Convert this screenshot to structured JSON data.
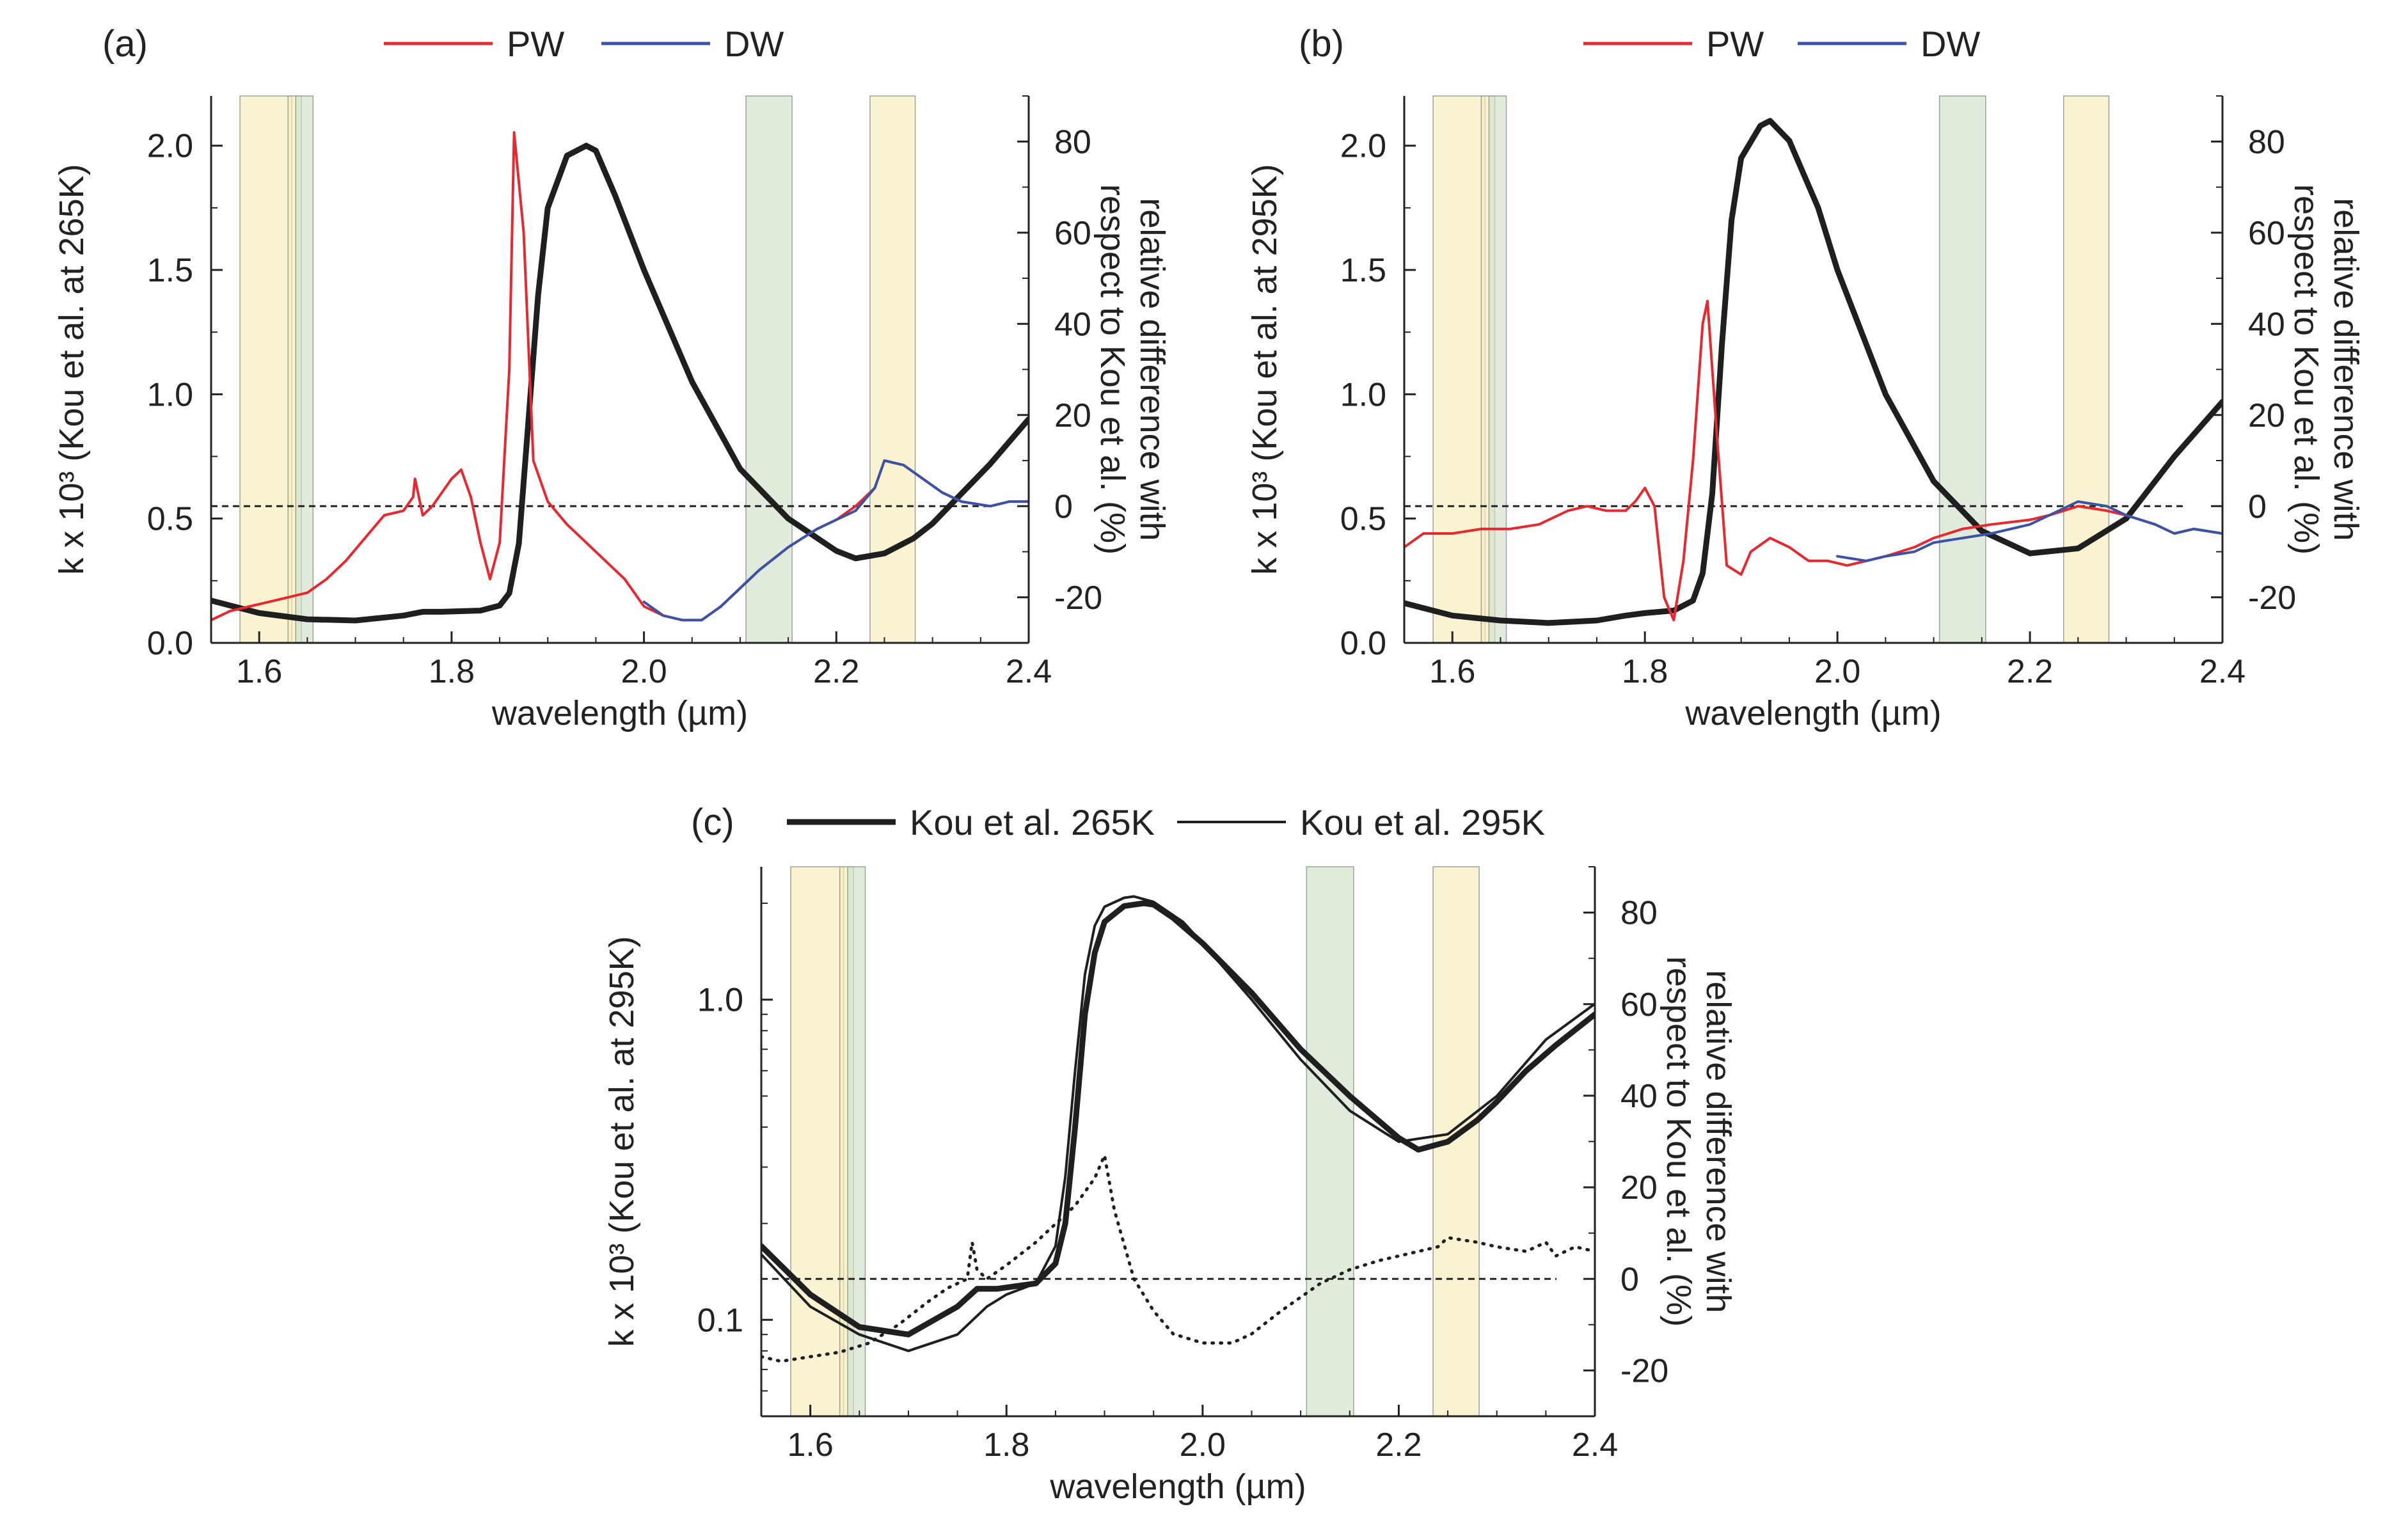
{
  "colors": {
    "pw": "#e8282e",
    "dw": "#3a53a6",
    "kou": "#1f1f1f",
    "band_yellow": "#f7edb8",
    "band_green": "#cfe0c8"
  },
  "shaded_bands_um": [
    {
      "range": [
        1.58,
        1.634
      ],
      "color": "yellow"
    },
    {
      "range": [
        1.63,
        1.644
      ],
      "color": "yellow"
    },
    {
      "range": [
        1.638,
        1.656
      ],
      "color": "green"
    },
    {
      "range": [
        2.106,
        2.154
      ],
      "color": "green"
    },
    {
      "range": [
        2.235,
        2.282
      ],
      "color": "yellow"
    }
  ],
  "chart_data": [
    {
      "id": "a",
      "panel_label": "(a)",
      "type": "line",
      "xlabel": "wavelength (µm)",
      "ylabel": "k x 10³ (Kou et al. at 265K)",
      "y2label": [
        "relative difference with",
        "respect to Kou et al. (%)"
      ],
      "xlim": [
        1.55,
        2.4
      ],
      "ylim": [
        0,
        2.2
      ],
      "y2lim": [
        -30,
        90
      ],
      "xticks": [
        "1.6",
        "1.8",
        "2.0",
        "2.2",
        "2.4"
      ],
      "yticks": [
        "0.0",
        "0.5",
        "1.0",
        "1.5",
        "2.0"
      ],
      "y2ticks": [
        "-20",
        "0",
        "20",
        "40",
        "60",
        "80"
      ],
      "legend": [
        {
          "label": "PW",
          "color": "#e8282e"
        },
        {
          "label": "DW",
          "color": "#3a53a6"
        }
      ],
      "zero_line_y2": 0,
      "series": [
        {
          "name": "Kou et al. 265K",
          "axis": "left",
          "width": 9,
          "color": "#1f1f1f",
          "x": [
            1.55,
            1.6,
            1.65,
            1.7,
            1.75,
            1.77,
            1.79,
            1.83,
            1.85,
            1.86,
            1.87,
            1.88,
            1.89,
            1.9,
            1.92,
            1.94,
            1.95,
            1.97,
            2.0,
            2.05,
            2.1,
            2.15,
            2.2,
            2.22,
            2.25,
            2.28,
            2.3,
            2.33,
            2.36,
            2.4
          ],
          "y": [
            0.17,
            0.12,
            0.095,
            0.09,
            0.11,
            0.125,
            0.125,
            0.13,
            0.15,
            0.2,
            0.4,
            0.9,
            1.4,
            1.75,
            1.96,
            2.0,
            1.98,
            1.8,
            1.5,
            1.05,
            0.7,
            0.5,
            0.37,
            0.34,
            0.36,
            0.42,
            0.48,
            0.6,
            0.72,
            0.9
          ]
        },
        {
          "name": "PW",
          "axis": "right",
          "width": 4,
          "color": "#e8282e",
          "x": [
            1.55,
            1.57,
            1.59,
            1.61,
            1.63,
            1.65,
            1.67,
            1.69,
            1.71,
            1.73,
            1.75,
            1.76,
            1.762,
            1.77,
            1.78,
            1.8,
            1.81,
            1.82,
            1.83,
            1.84,
            1.85,
            1.86,
            1.865,
            1.875,
            1.885,
            1.9,
            1.92,
            1.94,
            1.96,
            1.98,
            2.0,
            2.02,
            2.04,
            2.06,
            2.08,
            2.1,
            2.12,
            2.15,
            2.18,
            2.2,
            2.22,
            2.24,
            2.25,
            2.27,
            2.29,
            2.31,
            2.33,
            2.36,
            2.38,
            2.4
          ],
          "y": [
            -25,
            -23,
            -22,
            -21,
            -20,
            -19,
            -16,
            -12,
            -7,
            -2,
            -1,
            2,
            6,
            -2,
            0,
            6,
            8,
            2,
            -8,
            -16,
            -8,
            30,
            82,
            60,
            10,
            1,
            -4,
            -8,
            -12,
            -16,
            -22,
            -24,
            -25,
            -25,
            -22,
            -18,
            -14,
            -9,
            -5,
            -3,
            0,
            4,
            10,
            9,
            6,
            3,
            1,
            0,
            1,
            1
          ]
        },
        {
          "name": "DW",
          "axis": "right",
          "width": 4,
          "color": "#3a53a6",
          "x": [
            2.0,
            2.02,
            2.04,
            2.06,
            2.08,
            2.1,
            2.12,
            2.15,
            2.18,
            2.2,
            2.22,
            2.24,
            2.25,
            2.27,
            2.29,
            2.31,
            2.33,
            2.36,
            2.38,
            2.4
          ],
          "y": [
            -21,
            -24,
            -25,
            -25,
            -22,
            -18,
            -14,
            -9,
            -5,
            -3,
            -1,
            4,
            10,
            9,
            6,
            3,
            1,
            0,
            1,
            1
          ]
        }
      ]
    },
    {
      "id": "b",
      "panel_label": "(b)",
      "type": "line",
      "xlabel": "wavelength (µm)",
      "ylabel": "k x 10³ (Kou et al. at 295K)",
      "y2label": [
        "relative difference with",
        "respect to Kou et al. (%)"
      ],
      "xlim": [
        1.55,
        2.4
      ],
      "ylim": [
        0,
        2.2
      ],
      "y2lim": [
        -30,
        90
      ],
      "xticks": [
        "1.6",
        "1.8",
        "2.0",
        "2.2",
        "2.4"
      ],
      "yticks": [
        "0.0",
        "0.5",
        "1.0",
        "1.5",
        "2.0"
      ],
      "y2ticks": [
        "-20",
        "0",
        "20",
        "40",
        "60",
        "80"
      ],
      "legend": [
        {
          "label": "PW",
          "color": "#e8282e"
        },
        {
          "label": "DW",
          "color": "#3a53a6"
        }
      ],
      "zero_line_y2": 0,
      "series": [
        {
          "name": "Kou et al. 295K",
          "axis": "left",
          "width": 9,
          "color": "#1f1f1f",
          "x": [
            1.55,
            1.6,
            1.65,
            1.7,
            1.75,
            1.78,
            1.8,
            1.83,
            1.85,
            1.86,
            1.87,
            1.88,
            1.89,
            1.9,
            1.92,
            1.93,
            1.95,
            1.98,
            2.0,
            2.05,
            2.1,
            2.15,
            2.2,
            2.25,
            2.3,
            2.35,
            2.4
          ],
          "y": [
            0.16,
            0.11,
            0.09,
            0.08,
            0.09,
            0.11,
            0.12,
            0.13,
            0.17,
            0.28,
            0.6,
            1.2,
            1.7,
            1.95,
            2.08,
            2.1,
            2.02,
            1.75,
            1.5,
            1.0,
            0.65,
            0.45,
            0.36,
            0.38,
            0.5,
            0.75,
            0.97
          ]
        },
        {
          "name": "PW",
          "axis": "right",
          "width": 4,
          "color": "#e8282e",
          "x": [
            1.55,
            1.57,
            1.6,
            1.63,
            1.66,
            1.69,
            1.72,
            1.74,
            1.76,
            1.78,
            1.79,
            1.8,
            1.81,
            1.82,
            1.83,
            1.84,
            1.85,
            1.86,
            1.865,
            1.875,
            1.885,
            1.9,
            1.91,
            1.93,
            1.95,
            1.97,
            1.99,
            2.01,
            2.03,
            2.05,
            2.08,
            2.1,
            2.13,
            2.16,
            2.2,
            2.22,
            2.25,
            2.28,
            2.3,
            2.33,
            2.35,
            2.37,
            2.4
          ],
          "y": [
            -9,
            -6,
            -6,
            -5,
            -5,
            -4,
            -1,
            0,
            -1,
            -1,
            1,
            4,
            0,
            -20,
            -25,
            -12,
            10,
            40,
            45,
            15,
            -13,
            -15,
            -10,
            -7,
            -9,
            -12,
            -12,
            -13,
            -12,
            -11,
            -9,
            -7,
            -5,
            -4,
            -3,
            -2,
            0,
            -1,
            -2,
            -4,
            -6,
            -5,
            -6
          ]
        },
        {
          "name": "DW",
          "axis": "right",
          "width": 4,
          "color": "#3a53a6",
          "x": [
            2.0,
            2.03,
            2.05,
            2.08,
            2.1,
            2.13,
            2.16,
            2.2,
            2.22,
            2.25,
            2.28,
            2.3,
            2.33,
            2.35,
            2.37,
            2.4
          ],
          "y": [
            -11,
            -12,
            -11,
            -10,
            -8,
            -7,
            -6,
            -4,
            -2,
            1,
            0,
            -2,
            -4,
            -6,
            -5,
            -6
          ]
        }
      ]
    },
    {
      "id": "c",
      "panel_label": "(c)",
      "type": "line",
      "xlabel": "wavelength (µm)",
      "ylabel": "k x 10³ (Kou et al. at 295K)",
      "y2label": [
        "relative difference with",
        "respect to Kou et al. (%)"
      ],
      "xlim": [
        1.55,
        2.4
      ],
      "yscale": "log",
      "ylim": [
        0.05,
        2.6
      ],
      "y2lim": [
        -30,
        90
      ],
      "xticks": [
        "1.6",
        "1.8",
        "2.0",
        "2.2",
        "2.4"
      ],
      "yticks": [
        "0.1",
        "1.0"
      ],
      "y2ticks": [
        "-20",
        "0",
        "20",
        "40",
        "60",
        "80"
      ],
      "legend": [
        {
          "label": "Kou et al. 265K",
          "width": 9
        },
        {
          "label": "Kou et al. 295K",
          "width": 4
        }
      ],
      "zero_line_y2": 0,
      "series": [
        {
          "name": "Kou et al. 265K",
          "axis": "left",
          "width": 9,
          "color": "#1f1f1f",
          "x": [
            1.55,
            1.6,
            1.65,
            1.7,
            1.75,
            1.77,
            1.79,
            1.83,
            1.85,
            1.86,
            1.87,
            1.88,
            1.89,
            1.9,
            1.92,
            1.94,
            1.95,
            1.97,
            2.0,
            2.05,
            2.1,
            2.15,
            2.2,
            2.22,
            2.25,
            2.28,
            2.3,
            2.33,
            2.36,
            2.4
          ],
          "y": [
            0.17,
            0.12,
            0.095,
            0.09,
            0.11,
            0.125,
            0.125,
            0.13,
            0.15,
            0.2,
            0.4,
            0.9,
            1.4,
            1.75,
            1.96,
            2.0,
            1.98,
            1.8,
            1.5,
            1.05,
            0.7,
            0.5,
            0.37,
            0.34,
            0.36,
            0.42,
            0.48,
            0.6,
            0.72,
            0.9
          ]
        },
        {
          "name": "Kou et al. 295K",
          "axis": "left",
          "width": 4,
          "color": "#1f1f1f",
          "x": [
            1.55,
            1.6,
            1.65,
            1.7,
            1.75,
            1.78,
            1.8,
            1.83,
            1.85,
            1.86,
            1.87,
            1.88,
            1.89,
            1.9,
            1.92,
            1.93,
            1.95,
            1.98,
            2.0,
            2.05,
            2.1,
            2.15,
            2.2,
            2.25,
            2.3,
            2.35,
            2.4
          ],
          "y": [
            0.16,
            0.11,
            0.09,
            0.08,
            0.09,
            0.11,
            0.12,
            0.13,
            0.17,
            0.28,
            0.6,
            1.2,
            1.7,
            1.95,
            2.08,
            2.1,
            2.02,
            1.75,
            1.5,
            1.0,
            0.65,
            0.45,
            0.36,
            0.38,
            0.5,
            0.75,
            0.97
          ]
        },
        {
          "name": "relative difference",
          "axis": "right",
          "width": 5,
          "color": "#1f1f1f",
          "dotted": true,
          "x": [
            1.55,
            1.57,
            1.6,
            1.63,
            1.66,
            1.69,
            1.72,
            1.74,
            1.76,
            1.765,
            1.77,
            1.78,
            1.8,
            1.83,
            1.85,
            1.87,
            1.89,
            1.9,
            1.91,
            1.93,
            1.95,
            1.97,
            2.0,
            2.03,
            2.05,
            2.08,
            2.1,
            2.12,
            2.15,
            2.18,
            2.2,
            2.22,
            2.24,
            2.25,
            2.28,
            2.3,
            2.33,
            2.35,
            2.36,
            2.38,
            2.4
          ],
          "y": [
            -17,
            -18,
            -17,
            -16,
            -14,
            -10,
            -5,
            -2,
            0,
            8,
            2,
            0,
            3,
            8,
            12,
            16,
            22,
            27,
            15,
            0,
            -7,
            -12,
            -14,
            -14,
            -12,
            -7,
            -4,
            -1,
            2,
            4,
            5,
            6,
            7,
            9,
            8,
            7,
            6,
            8,
            5,
            7,
            6
          ]
        }
      ]
    }
  ]
}
